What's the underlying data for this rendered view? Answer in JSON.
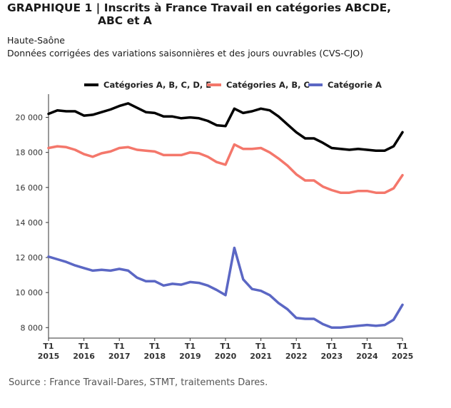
{
  "title_line1": "GRAPHIQUE 1 | Inscrits à France Travail en catégories ABCDE,",
  "title_line2": "ABC et A",
  "region": "Haute-Saône",
  "subtitle": "Données corrigées des variations saisonnières et des jours ouvrables (CVS-CJO)",
  "source": "Source : France Travail-Dares, STMT, traitements Dares.",
  "chart_data": {
    "type": "line",
    "grid": false,
    "legend_position": "top",
    "ylim": [
      7400,
      21000
    ],
    "y_ticks": [
      8000,
      10000,
      12000,
      14000,
      16000,
      18000,
      20000
    ],
    "y_tick_labels": [
      "8 000",
      "10 000",
      "12 000",
      "14 000",
      "16 000",
      "18 000",
      "20 000"
    ],
    "x_tick_labels": [
      {
        "top": "T1",
        "bottom": "2015"
      },
      {
        "top": "T1",
        "bottom": "2016"
      },
      {
        "top": "T1",
        "bottom": "2017"
      },
      {
        "top": "T1",
        "bottom": "2018"
      },
      {
        "top": "T1",
        "bottom": "2019"
      },
      {
        "top": "T1",
        "bottom": "2020"
      },
      {
        "top": "T1",
        "bottom": "2021"
      },
      {
        "top": "T1",
        "bottom": "2022"
      },
      {
        "top": "T1",
        "bottom": "2023"
      },
      {
        "top": "T1",
        "bottom": "2024"
      },
      {
        "top": "T1",
        "bottom": "2025"
      }
    ],
    "x": [
      "2015-T1",
      "2015-T2",
      "2015-T3",
      "2015-T4",
      "2016-T1",
      "2016-T2",
      "2016-T3",
      "2016-T4",
      "2017-T1",
      "2017-T2",
      "2017-T3",
      "2017-T4",
      "2018-T1",
      "2018-T2",
      "2018-T3",
      "2018-T4",
      "2019-T1",
      "2019-T2",
      "2019-T3",
      "2019-T4",
      "2020-T1",
      "2020-T2",
      "2020-T3",
      "2020-T4",
      "2021-T1",
      "2021-T2",
      "2021-T3",
      "2021-T4",
      "2022-T1",
      "2022-T2",
      "2022-T3",
      "2022-T4",
      "2023-T1",
      "2023-T2",
      "2023-T3",
      "2023-T4",
      "2024-T1",
      "2024-T2",
      "2024-T3",
      "2024-T4",
      "2025-T1"
    ],
    "series": [
      {
        "name": "Catégories A, B, C, D, E",
        "color": "#000000",
        "values": [
          20200,
          20400,
          20350,
          20350,
          20100,
          20150,
          20300,
          20450,
          20650,
          20800,
          20550,
          20300,
          20250,
          20050,
          20050,
          19950,
          20000,
          19950,
          19800,
          19550,
          19500,
          20500,
          20250,
          20350,
          20500,
          20400,
          20050,
          19600,
          19150,
          18800,
          18800,
          18550,
          18250,
          18200,
          18150,
          18200,
          18150,
          18100,
          18100,
          18350,
          19150
        ]
      },
      {
        "name": "Catégories A, B, C",
        "color": "#f4776b",
        "values": [
          18250,
          18350,
          18300,
          18150,
          17900,
          17750,
          17950,
          18050,
          18250,
          18300,
          18150,
          18100,
          18050,
          17850,
          17850,
          17850,
          18000,
          17950,
          17750,
          17450,
          17300,
          18450,
          18200,
          18200,
          18250,
          18000,
          17650,
          17250,
          16750,
          16400,
          16400,
          16050,
          15850,
          15700,
          15700,
          15800,
          15800,
          15700,
          15700,
          15950,
          16700
        ]
      },
      {
        "name": "Catégorie A",
        "color": "#5b67c4",
        "values": [
          12050,
          11900,
          11750,
          11550,
          11400,
          11250,
          11300,
          11250,
          11350,
          11250,
          10850,
          10650,
          10650,
          10400,
          10500,
          10450,
          10600,
          10550,
          10400,
          10150,
          9850,
          12550,
          10750,
          10200,
          10100,
          9850,
          9400,
          9050,
          8550,
          8500,
          8500,
          8200,
          8000,
          8000,
          8050,
          8100,
          8150,
          8100,
          8150,
          8450,
          9300
        ]
      }
    ]
  }
}
